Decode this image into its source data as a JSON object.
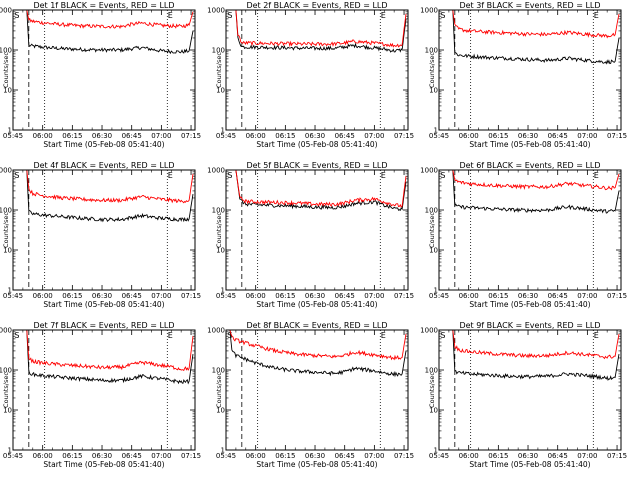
{
  "figure": {
    "background": "#ffffff",
    "colors": {
      "events": "#000000",
      "lld": "#ff0000",
      "axes": "#000000"
    }
  },
  "chart_data": [
    {
      "type": "line",
      "title": "Det 1f BLACK = Events, RED = LLD",
      "xlabel": "Start Time (05-Feb-08 05:41:40)",
      "ylabel": "Counts/sec",
      "ylog": true,
      "ylim": [
        1,
        1000
      ],
      "xlim": [
        "05:45",
        "07:17"
      ],
      "xticks": [
        "05:45",
        "06:00",
        "06:15",
        "06:30",
        "06:45",
        "07:00",
        "07:15"
      ],
      "yticks": [
        "1",
        "10",
        "100",
        "1000"
      ],
      "markers": {
        "S": "05:48",
        "E": "07:03"
      },
      "dashed_line": "05:53",
      "dotted_lines": [
        "06:01",
        "07:03"
      ],
      "series": [
        {
          "name": "BLACK = Events",
          "color": "#000000",
          "x": [
            "05:52",
            "05:53",
            "05:55",
            "06:00",
            "06:10",
            "06:20",
            "06:30",
            "06:40",
            "06:45",
            "06:50",
            "07:00",
            "07:05",
            "07:10",
            "07:14",
            "07:16"
          ],
          "y": [
            1000,
            130,
            125,
            118,
            108,
            103,
            100,
            100,
            108,
            115,
            95,
            92,
            90,
            95,
            300
          ]
        },
        {
          "name": "RED = LLD",
          "color": "#ff0000",
          "x": [
            "05:52",
            "05:53",
            "05:55",
            "06:00",
            "06:10",
            "06:20",
            "06:30",
            "06:40",
            "06:45",
            "06:50",
            "07:00",
            "07:05",
            "07:10",
            "07:14",
            "07:16"
          ],
          "y": [
            1000,
            560,
            520,
            480,
            430,
            400,
            390,
            385,
            440,
            470,
            410,
            400,
            390,
            420,
            900
          ]
        }
      ]
    },
    {
      "type": "line",
      "title": "Det 2f BLACK = Events, RED = LLD",
      "xlabel": "Start Time (05-Feb-08 05:41:40)",
      "ylabel": "Counts/sec",
      "ylog": true,
      "ylim": [
        1,
        1000
      ],
      "xlim": [
        "05:45",
        "07:17"
      ],
      "xticks": [
        "05:45",
        "06:00",
        "06:15",
        "06:30",
        "06:45",
        "07:00",
        "07:15"
      ],
      "yticks": [
        "1",
        "10",
        "100",
        "1000"
      ],
      "markers": {
        "S": "05:48",
        "E": "07:03"
      },
      "dashed_line": "05:53",
      "dotted_lines": [
        "06:01",
        "07:03"
      ],
      "series": [
        {
          "name": "BLACK = Events",
          "color": "#000000",
          "x": [
            "05:50",
            "05:51",
            "05:53",
            "06:00",
            "06:10",
            "06:20",
            "06:30",
            "06:40",
            "06:45",
            "06:50",
            "07:00",
            "07:05",
            "07:10",
            "07:14",
            "07:16"
          ],
          "y": [
            1000,
            200,
            120,
            118,
            115,
            112,
            110,
            110,
            120,
            130,
            112,
            105,
            95,
            100,
            600
          ]
        },
        {
          "name": "RED = LLD",
          "color": "#ff0000",
          "x": [
            "05:50",
            "05:51",
            "05:53",
            "06:00",
            "06:10",
            "06:20",
            "06:30",
            "06:40",
            "06:45",
            "06:50",
            "07:00",
            "07:05",
            "07:10",
            "07:14",
            "07:16"
          ],
          "y": [
            1000,
            250,
            150,
            148,
            145,
            142,
            140,
            142,
            150,
            165,
            148,
            140,
            130,
            135,
            800
          ]
        }
      ]
    },
    {
      "type": "line",
      "title": "Det 3f BLACK = Events, RED = LLD",
      "xlabel": "Start Time (05-Feb-08 05:41:40)",
      "ylabel": "Counts/sec",
      "ylog": true,
      "ylim": [
        1,
        1000
      ],
      "xlim": [
        "05:45",
        "07:17"
      ],
      "xticks": [
        "05:45",
        "06:00",
        "06:15",
        "06:30",
        "06:45",
        "07:00",
        "07:15"
      ],
      "yticks": [
        "1",
        "10",
        "100",
        "1000"
      ],
      "markers": {
        "S": "05:48",
        "E": "07:03"
      },
      "dashed_line": "05:53",
      "dotted_lines": [
        "06:01",
        "07:03"
      ],
      "series": [
        {
          "name": "BLACK = Events",
          "color": "#000000",
          "x": [
            "05:52",
            "05:53",
            "05:55",
            "06:00",
            "06:10",
            "06:20",
            "06:30",
            "06:40",
            "06:45",
            "06:50",
            "07:00",
            "07:05",
            "07:10",
            "07:14",
            "07:16"
          ],
          "y": [
            1000,
            85,
            75,
            70,
            65,
            62,
            58,
            55,
            58,
            62,
            55,
            52,
            50,
            52,
            200
          ]
        },
        {
          "name": "RED = LLD",
          "color": "#ff0000",
          "x": [
            "05:52",
            "05:53",
            "05:55",
            "06:00",
            "06:10",
            "06:20",
            "06:30",
            "06:40",
            "06:45",
            "06:50",
            "07:00",
            "07:05",
            "07:10",
            "07:14",
            "07:16"
          ],
          "y": [
            1000,
            400,
            330,
            300,
            280,
            265,
            250,
            245,
            260,
            275,
            245,
            235,
            225,
            240,
            800
          ]
        }
      ]
    },
    {
      "type": "line",
      "title": "Det 4f BLACK = Events, RED = LLD",
      "xlabel": "Start Time (05-Feb-08 05:41:40)",
      "ylabel": "Counts/sec",
      "ylog": true,
      "ylim": [
        1,
        1000
      ],
      "xlim": [
        "05:45",
        "07:17"
      ],
      "xticks": [
        "05:45",
        "06:00",
        "06:15",
        "06:30",
        "06:45",
        "07:00",
        "07:15"
      ],
      "yticks": [
        "1",
        "10",
        "100",
        "1000"
      ],
      "markers": {
        "S": "05:48",
        "E": "07:03"
      },
      "dashed_line": "05:53",
      "dotted_lines": [
        "06:01",
        "07:03"
      ],
      "series": [
        {
          "name": "BLACK = Events",
          "color": "#000000",
          "x": [
            "05:52",
            "05:53",
            "05:55",
            "06:00",
            "06:10",
            "06:20",
            "06:30",
            "06:40",
            "06:45",
            "06:50",
            "07:00",
            "07:05",
            "07:10",
            "07:14",
            "07:16"
          ],
          "y": [
            1000,
            90,
            80,
            75,
            68,
            62,
            58,
            58,
            65,
            72,
            62,
            60,
            58,
            60,
            250
          ]
        },
        {
          "name": "RED = LLD",
          "color": "#ff0000",
          "x": [
            "05:52",
            "05:53",
            "05:55",
            "06:00",
            "06:10",
            "06:20",
            "06:30",
            "06:40",
            "06:45",
            "06:50",
            "07:00",
            "07:05",
            "07:10",
            "07:14",
            "07:16"
          ],
          "y": [
            1000,
            330,
            260,
            230,
            200,
            185,
            175,
            175,
            195,
            215,
            185,
            175,
            165,
            175,
            800
          ]
        }
      ]
    },
    {
      "type": "line",
      "title": "Det 5f BLACK = Events, RED = LLD",
      "xlabel": "Start Time (05-Feb-08 05:41:40)",
      "ylabel": "Counts/sec",
      "ylog": true,
      "ylim": [
        1,
        1000
      ],
      "xlim": [
        "05:45",
        "07:17"
      ],
      "xticks": [
        "05:45",
        "06:00",
        "06:15",
        "06:30",
        "06:45",
        "07:00",
        "07:15"
      ],
      "yticks": [
        "1",
        "10",
        "100",
        "1000"
      ],
      "markers": {
        "S": "05:48",
        "E": "07:03"
      },
      "dashed_line": "05:53",
      "dotted_lines": [
        "06:01",
        "07:03"
      ],
      "series": [
        {
          "name": "BLACK = Events",
          "color": "#000000",
          "x": [
            "05:50",
            "05:52",
            "05:55",
            "06:00",
            "06:10",
            "06:20",
            "06:30",
            "06:40",
            "06:45",
            "06:50",
            "07:00",
            "07:05",
            "07:10",
            "07:14",
            "07:16"
          ],
          "y": [
            1000,
            180,
            140,
            135,
            130,
            125,
            118,
            115,
            125,
            145,
            160,
            130,
            110,
            105,
            500
          ]
        },
        {
          "name": "RED = LLD",
          "color": "#ff0000",
          "x": [
            "05:50",
            "05:52",
            "05:55",
            "06:00",
            "06:10",
            "06:20",
            "06:30",
            "06:40",
            "06:45",
            "06:50",
            "07:00",
            "07:05",
            "07:10",
            "07:14",
            "07:16"
          ],
          "y": [
            1000,
            200,
            165,
            160,
            155,
            150,
            140,
            138,
            150,
            175,
            190,
            160,
            135,
            125,
            700
          ]
        }
      ]
    },
    {
      "type": "line",
      "title": "Det 6f BLACK = Events, RED = LLD",
      "xlabel": "Start Time (05-Feb-08 05:41:40)",
      "ylabel": "Counts/sec",
      "ylog": true,
      "ylim": [
        1,
        1000
      ],
      "xlim": [
        "05:45",
        "07:17"
      ],
      "xticks": [
        "05:45",
        "06:00",
        "06:15",
        "06:30",
        "06:45",
        "07:00",
        "07:15"
      ],
      "yticks": [
        "1",
        "10",
        "100",
        "1000"
      ],
      "markers": {
        "S": "05:48",
        "E": "07:03"
      },
      "dashed_line": "05:53",
      "dotted_lines": [
        "06:01",
        "07:03"
      ],
      "series": [
        {
          "name": "BLACK = Events",
          "color": "#000000",
          "x": [
            "05:52",
            "05:53",
            "05:55",
            "06:00",
            "06:10",
            "06:20",
            "06:30",
            "06:40",
            "06:45",
            "06:50",
            "07:00",
            "07:05",
            "07:10",
            "07:14",
            "07:16"
          ],
          "y": [
            1000,
            130,
            120,
            115,
            108,
            102,
            98,
            100,
            110,
            120,
            105,
            98,
            92,
            95,
            300
          ]
        },
        {
          "name": "RED = LLD",
          "color": "#ff0000",
          "x": [
            "05:52",
            "05:53",
            "05:55",
            "06:00",
            "06:10",
            "06:20",
            "06:30",
            "06:40",
            "06:45",
            "06:50",
            "07:00",
            "07:05",
            "07:10",
            "07:14",
            "07:16"
          ],
          "y": [
            1000,
            560,
            500,
            460,
            420,
            395,
            380,
            380,
            420,
            460,
            400,
            380,
            350,
            360,
            800
          ]
        }
      ]
    },
    {
      "type": "line",
      "title": "Det 7f BLACK = Events, RED = LLD",
      "xlabel": "Start Time (05-Feb-08 05:41:40)",
      "ylabel": "Counts/sec",
      "ylog": true,
      "ylim": [
        1,
        1000
      ],
      "xlim": [
        "05:45",
        "07:17"
      ],
      "xticks": [
        "05:45",
        "06:00",
        "06:15",
        "06:30",
        "06:45",
        "07:00",
        "07:15"
      ],
      "yticks": [
        "1",
        "10",
        "100",
        "1000"
      ],
      "markers": {
        "S": "05:48",
        "E": "07:03"
      },
      "dashed_line": "05:53",
      "dotted_lines": [
        "06:01",
        "07:03"
      ],
      "series": [
        {
          "name": "BLACK = Events",
          "color": "#000000",
          "x": [
            "05:52",
            "05:53",
            "05:55",
            "06:00",
            "06:10",
            "06:20",
            "06:30",
            "06:40",
            "06:45",
            "06:50",
            "07:00",
            "07:05",
            "07:10",
            "07:14",
            "07:16"
          ],
          "y": [
            1000,
            90,
            78,
            72,
            65,
            60,
            55,
            55,
            62,
            70,
            60,
            55,
            50,
            52,
            250
          ]
        },
        {
          "name": "RED = LLD",
          "color": "#ff0000",
          "x": [
            "05:52",
            "05:53",
            "05:55",
            "06:00",
            "06:10",
            "06:20",
            "06:30",
            "06:40",
            "06:45",
            "06:50",
            "07:00",
            "07:05",
            "07:10",
            "07:14",
            "07:16"
          ],
          "y": [
            1000,
            200,
            165,
            150,
            135,
            125,
            115,
            118,
            135,
            155,
            130,
            120,
            105,
            110,
            700
          ]
        }
      ]
    },
    {
      "type": "line",
      "title": "Det 8f BLACK = Events, RED = LLD",
      "xlabel": "Start Time (05-Feb-08 05:41:40)",
      "ylabel": "Counts/sec",
      "ylog": true,
      "ylim": [
        1,
        1000
      ],
      "xlim": [
        "05:45",
        "07:17"
      ],
      "xticks": [
        "05:45",
        "06:00",
        "06:15",
        "06:30",
        "06:45",
        "07:00",
        "07:15"
      ],
      "yticks": [
        "1",
        "10",
        "100",
        "1000"
      ],
      "markers": {
        "S": "05:48",
        "E": "07:03"
      },
      "dashed_line": "05:53",
      "dotted_lines": [
        "06:01",
        "07:03"
      ],
      "series": [
        {
          "name": "BLACK = Events",
          "color": "#000000",
          "x": [
            "05:47",
            "05:48",
            "05:50",
            "06:00",
            "06:10",
            "06:20",
            "06:30",
            "06:40",
            "06:45",
            "06:50",
            "07:00",
            "07:05",
            "07:10",
            "07:14",
            "07:16"
          ],
          "y": [
            1000,
            300,
            230,
            150,
            110,
            95,
            88,
            82,
            90,
            110,
            95,
            85,
            78,
            80,
            300
          ]
        },
        {
          "name": "RED = LLD",
          "color": "#ff0000",
          "x": [
            "05:47",
            "05:48",
            "05:50",
            "06:00",
            "06:10",
            "06:20",
            "06:30",
            "06:40",
            "06:45",
            "06:50",
            "07:00",
            "07:05",
            "07:10",
            "07:14",
            "07:16"
          ],
          "y": [
            1000,
            650,
            560,
            400,
            300,
            250,
            230,
            215,
            235,
            280,
            240,
            220,
            200,
            205,
            800
          ]
        }
      ]
    },
    {
      "type": "line",
      "title": "Det 9f BLACK = Events, RED = LLD",
      "xlabel": "Start Time (05-Feb-08 05:41:40)",
      "ylabel": "Counts/sec",
      "ylog": true,
      "ylim": [
        1,
        1000
      ],
      "xlim": [
        "05:45",
        "07:17"
      ],
      "xticks": [
        "05:45",
        "06:00",
        "06:15",
        "06:30",
        "06:45",
        "07:00",
        "07:15"
      ],
      "yticks": [
        "1",
        "10",
        "100",
        "1000"
      ],
      "markers": {
        "S": "05:48",
        "E": "07:03"
      },
      "dashed_line": "05:53",
      "dotted_lines": [
        "06:01",
        "07:03"
      ],
      "series": [
        {
          "name": "BLACK = Events",
          "color": "#000000",
          "x": [
            "05:52",
            "05:53",
            "05:55",
            "06:00",
            "06:10",
            "06:20",
            "06:30",
            "06:40",
            "06:45",
            "06:50",
            "07:00",
            "07:05",
            "07:10",
            "07:14",
            "07:16"
          ],
          "y": [
            1000,
            92,
            85,
            80,
            75,
            70,
            68,
            70,
            75,
            80,
            72,
            68,
            62,
            65,
            250
          ]
        },
        {
          "name": "RED = LLD",
          "color": "#ff0000",
          "x": [
            "05:52",
            "05:53",
            "05:55",
            "06:00",
            "06:10",
            "06:20",
            "06:30",
            "06:40",
            "06:45",
            "06:50",
            "07:00",
            "07:05",
            "07:10",
            "07:14",
            "07:16"
          ],
          "y": [
            1000,
            400,
            320,
            290,
            260,
            240,
            225,
            230,
            250,
            270,
            240,
            225,
            210,
            220,
            800
          ]
        }
      ]
    }
  ]
}
